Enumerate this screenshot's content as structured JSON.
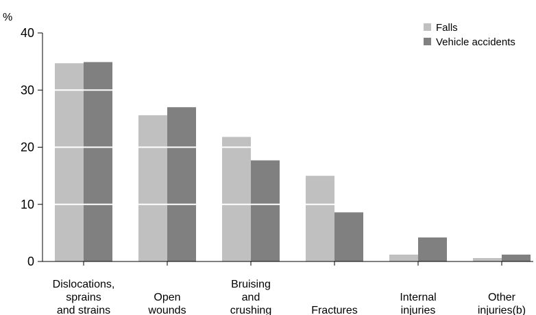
{
  "chart_data": {
    "type": "bar",
    "y_unit": "%",
    "categories": [
      [
        "Dislocations,",
        "sprains",
        "and strains"
      ],
      [
        "Open",
        "wounds"
      ],
      [
        "Bruising",
        "and",
        "crushing"
      ],
      [
        "Fractures"
      ],
      [
        "Internal",
        "injuries"
      ],
      [
        "Other",
        "injuries(b)"
      ]
    ],
    "series": [
      {
        "name": "Falls",
        "color": "#c0c0c0",
        "values": [
          34.7,
          25.6,
          21.8,
          15.0,
          1.2,
          0.6
        ]
      },
      {
        "name": "Vehicle accidents",
        "color": "#808080",
        "values": [
          34.9,
          27.0,
          17.7,
          8.6,
          4.2,
          1.2
        ]
      }
    ],
    "ylim": [
      0,
      40
    ],
    "yticks": [
      0,
      10,
      20,
      30,
      40
    ],
    "grid": "white lines across bars at each y tick",
    "legend": "top-right"
  }
}
